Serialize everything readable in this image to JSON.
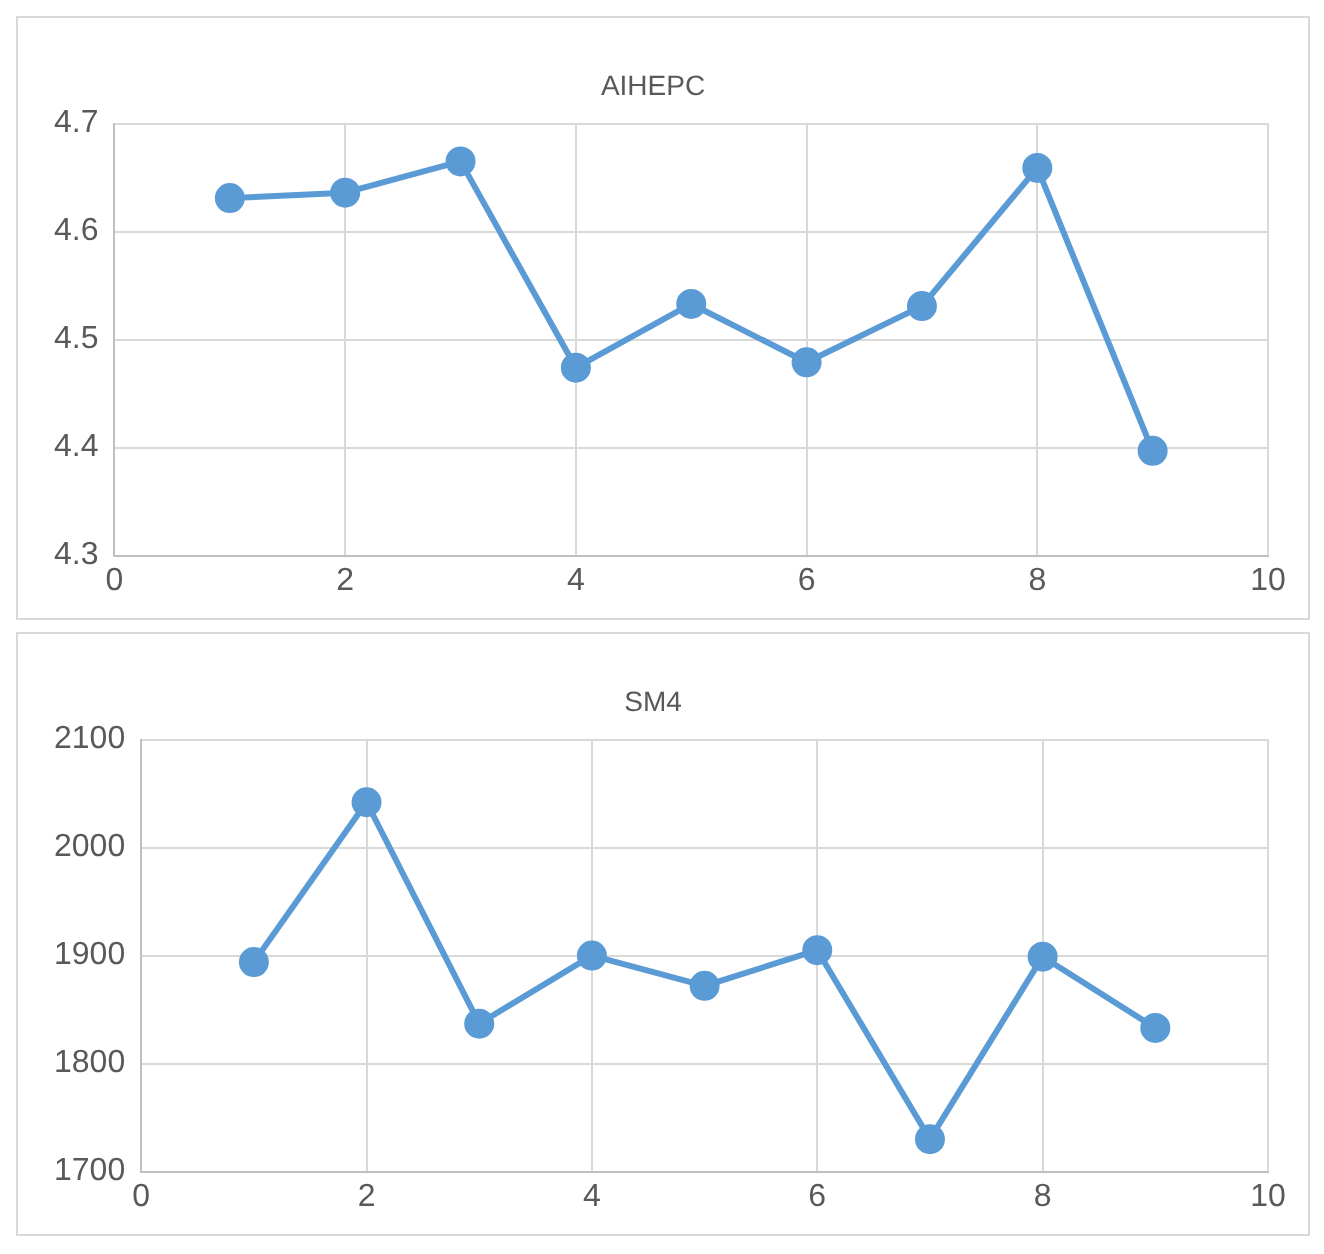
{
  "chart_data": [
    {
      "type": "line",
      "title": "AIHEPC",
      "x": [
        1,
        2,
        3,
        4,
        5,
        6,
        7,
        8,
        9
      ],
      "series": [
        {
          "color": "#5b9bd5",
          "values": [
            4.631,
            4.636,
            4.665,
            4.474,
            4.533,
            4.479,
            4.531,
            4.659,
            4.397
          ]
        }
      ],
      "xlim": [
        0,
        10
      ],
      "xticks": [
        0,
        2,
        4,
        6,
        8,
        10
      ],
      "ylim": [
        4.3,
        4.7
      ],
      "yticks": [
        4.3,
        4.4,
        4.5,
        4.6,
        4.7
      ],
      "grid": true,
      "marker": "circle",
      "line_style": "solid"
    },
    {
      "type": "line",
      "title": "SM4",
      "x": [
        1,
        2,
        3,
        4,
        5,
        6,
        7,
        8,
        9
      ],
      "series": [
        {
          "color": "#5b9bd5",
          "values": [
            1894,
            2042,
            1837,
            1900,
            1872,
            1905,
            1730,
            1899,
            1833
          ]
        }
      ],
      "xlim": [
        0,
        10
      ],
      "xticks": [
        0,
        2,
        4,
        6,
        8,
        10
      ],
      "ylim": [
        1700,
        2100
      ],
      "yticks": [
        1700,
        1800,
        1900,
        2000,
        2100
      ],
      "grid": true,
      "marker": "circle",
      "line_style": "solid"
    }
  ]
}
